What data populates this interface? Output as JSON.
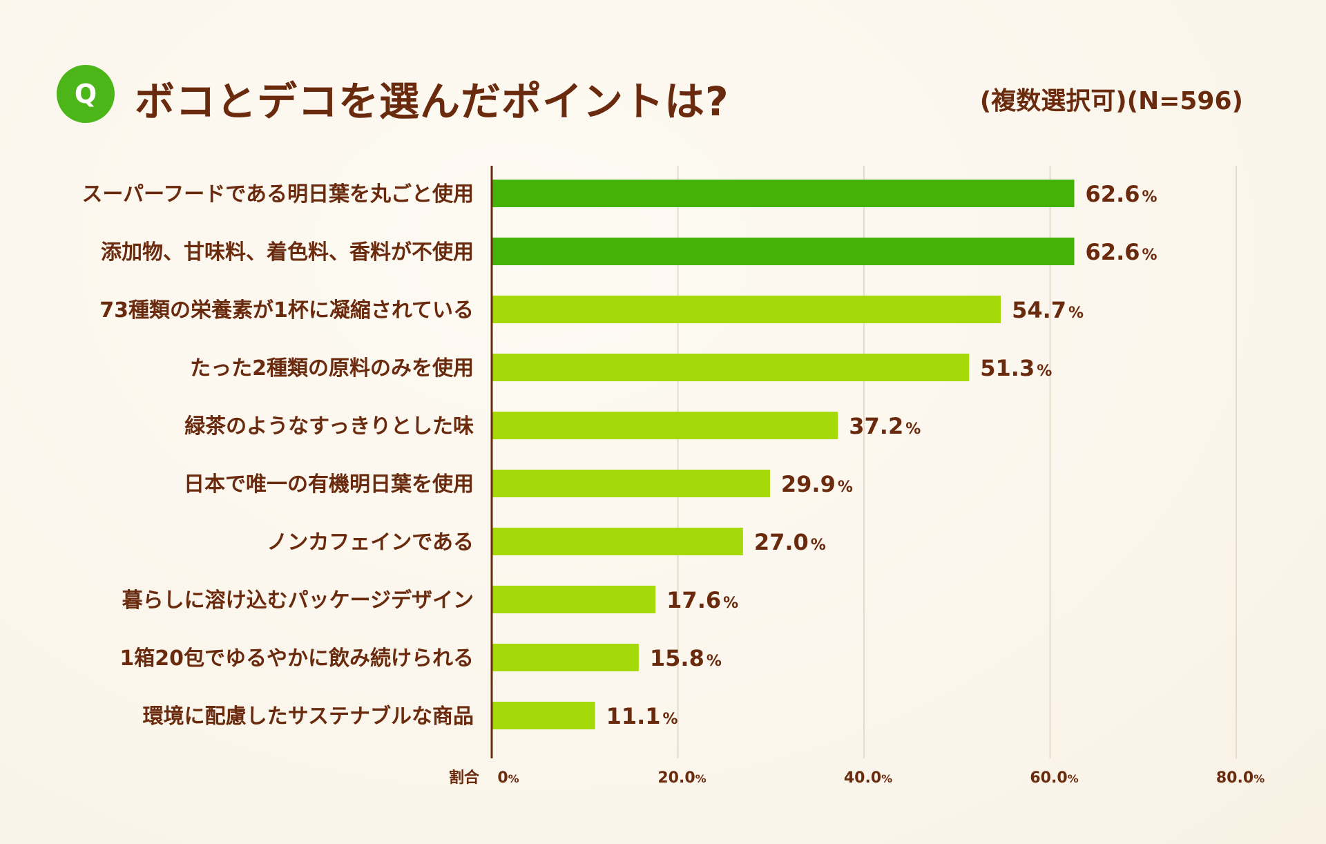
{
  "header": {
    "badge": "Q",
    "title": "ボコとデコを選んだポイントは?",
    "note": "(複数選択可)(N=596)"
  },
  "colors": {
    "top_bar": "#45b20a",
    "bar": "#a6d909",
    "text": "#6a2a0e",
    "grid": "#e6dccb",
    "axis": "#6a2a0e",
    "badge": "#4cb51a"
  },
  "chart_data": {
    "type": "bar",
    "orientation": "horizontal",
    "title": "ボコとデコを選んだポイントは?",
    "xlabel": "割合",
    "ylabel": "",
    "xlim": [
      0,
      80
    ],
    "ticks": [
      0,
      20,
      40,
      60,
      80
    ],
    "tick_labels": [
      "0",
      "20.0",
      "40.0",
      "60.0",
      "80.0"
    ],
    "tick_unit": "%",
    "axis_prefix": "割合",
    "value_unit": "%",
    "categories": [
      "スーパーフードである明日葉を丸ごと使用",
      "添加物、甘味料、着色料、香料が不使用",
      "73種類の栄養素が1杯に凝縮されている",
      "たった2種類の原料のみを使用",
      "緑茶のようなすっきりとした味",
      "日本で唯一の有機明日葉を使用",
      "ノンカフェインである",
      "暮らしに溶け込むパッケージデザイン",
      "1箱20包でゆるやかに飲み続けられる",
      "環境に配慮したサステナブルな商品"
    ],
    "values": [
      62.6,
      62.6,
      54.7,
      51.3,
      37.2,
      29.9,
      27.0,
      17.6,
      15.8,
      11.1
    ],
    "value_labels": [
      "62.6",
      "62.6",
      "54.7",
      "51.3",
      "37.2",
      "29.9",
      "27.0",
      "17.6",
      "15.8",
      "11.1"
    ],
    "highlight": [
      true,
      true,
      false,
      false,
      false,
      false,
      false,
      false,
      false,
      false
    ]
  }
}
